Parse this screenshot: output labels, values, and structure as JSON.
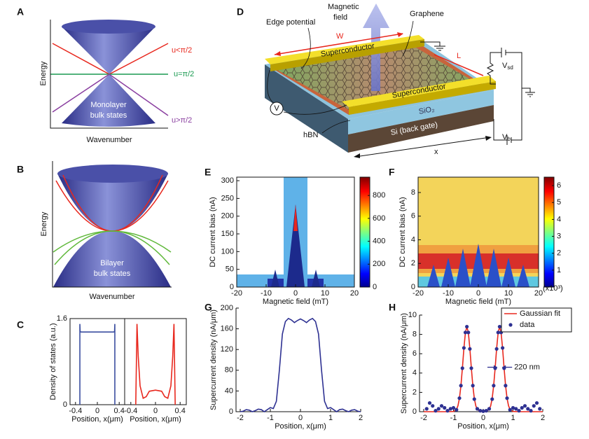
{
  "panels": {
    "A": {
      "letter": "A",
      "y_label": "Energy",
      "x_label": "Wavenumber",
      "bulk_label": [
        "Monolayer",
        "bulk states"
      ],
      "lines": [
        {
          "label": "u<π/2",
          "color": "#e8281e"
        },
        {
          "label": "u=π/2",
          "color": "#1a9a50"
        },
        {
          "label": "u>π/2",
          "color": "#8a3fa0"
        }
      ]
    },
    "B": {
      "letter": "B",
      "y_label": "Energy",
      "x_label": "Wavenumber",
      "bulk_label": [
        "Bilayer",
        "bulk states"
      ]
    },
    "C": {
      "letter": "C"
    },
    "D": {
      "letter": "D",
      "field_label": [
        "Magnetic",
        "field"
      ],
      "edge": "Edge potential",
      "graphene": "Graphene",
      "width": "W",
      "length": "L",
      "superconductor": "Superconductor",
      "oxide": "SiO₂",
      "gate": "Si (back gate)",
      "hbn": "hBN",
      "meter": "V",
      "axis": "x",
      "vsd": {
        "main": "V",
        "sub": "sd"
      },
      "vb": {
        "main": "V",
        "sub": "b"
      }
    },
    "E": {
      "letter": "E"
    },
    "F": {
      "letter": "F"
    },
    "G": {
      "letter": "G"
    },
    "H": {
      "letter": "H"
    }
  },
  "chart_data": [
    {
      "type": "line",
      "y_label": "Density of states (a.u.)",
      "x_label": "Position, x(μm)",
      "xlim": [
        -0.5,
        0.5
      ],
      "ylim": [
        0,
        1.6
      ],
      "xticks": [
        -0.4,
        0,
        0.4
      ],
      "yticks": [
        0,
        1.6
      ],
      "series": [
        {
          "color": "#3b4ea0",
          "x": [
            -0.32,
            -0.32,
            -0.315,
            -0.3,
            0,
            0.3,
            0.315,
            0.32,
            0.32
          ],
          "values": [
            0,
            1.5,
            1.36,
            1.35,
            1.35,
            1.35,
            1.36,
            1.5,
            0
          ]
        }
      ]
    },
    {
      "type": "line",
      "x_label": "Position, x(μm)",
      "xlim": [
        -0.5,
        0.5
      ],
      "ylim": [
        0,
        1.6
      ],
      "xticks": [
        -0.4,
        0,
        0.4
      ],
      "series": [
        {
          "color": "#e8281e",
          "x": [
            -0.32,
            -0.3,
            -0.28,
            -0.25,
            -0.2,
            -0.15,
            -0.1,
            0,
            0.1,
            0.15,
            0.2,
            0.25,
            0.28,
            0.3,
            0.32
          ],
          "values": [
            0,
            1.5,
            0.9,
            0.35,
            0.12,
            0.15,
            0.25,
            0.27,
            0.25,
            0.15,
            0.12,
            0.35,
            0.9,
            1.5,
            0
          ]
        }
      ]
    },
    {
      "type": "heatmap",
      "x_label": "Magnetic field (mT)",
      "y_label": "DC current bias (nA)",
      "xlim": [
        -20,
        20
      ],
      "ylim": [
        0,
        310
      ],
      "xticks": [
        -20,
        -10,
        0,
        10,
        20
      ],
      "yticks": [
        0,
        50,
        100,
        150,
        200,
        250,
        300
      ],
      "zlim": [
        0,
        960
      ],
      "zticks": [
        0,
        200,
        400,
        600,
        800
      ]
    },
    {
      "type": "heatmap",
      "x_label": "Magnetic field (mT)",
      "y_label": "DC current bias (nA)",
      "xlim": [
        -20,
        20
      ],
      "ylim": [
        0,
        9.3
      ],
      "xticks": [
        -20,
        -10,
        0,
        10,
        20
      ],
      "yticks": [
        0,
        2,
        4,
        6,
        8
      ],
      "zlim": [
        0,
        6.5
      ],
      "zticks": [
        1,
        2,
        3,
        4,
        5,
        6
      ],
      "annotation": "(x10³)"
    },
    {
      "type": "line",
      "y_label": "Supercurrent density (nA/μm)",
      "x_label": "Position, x(μm)",
      "xlim": [
        -2,
        2
      ],
      "ylim": [
        0,
        200
      ],
      "xticks": [
        -2,
        -1,
        0,
        1,
        2
      ],
      "yticks": [
        0,
        40,
        80,
        120,
        160,
        200
      ],
      "series": [
        {
          "color": "#2e3192",
          "x": [
            -2,
            -1.9,
            -1.8,
            -1.7,
            -1.6,
            -1.5,
            -1.4,
            -1.3,
            -1.2,
            -1.1,
            -1,
            -0.9,
            -0.8,
            -0.7,
            -0.6,
            -0.5,
            -0.4,
            -0.3,
            -0.2,
            -0.1,
            0,
            0.1,
            0.2,
            0.3,
            0.4,
            0.5,
            0.6,
            0.7,
            0.8,
            0.9,
            1,
            1.1,
            1.2,
            1.3,
            1.4,
            1.5,
            1.6,
            1.7,
            1.8,
            1.9,
            2
          ],
          "values": [
            0,
            1,
            4,
            3,
            0,
            2,
            5,
            4,
            0,
            4,
            8,
            6,
            20,
            80,
            150,
            174,
            180,
            177,
            172,
            176,
            179,
            176,
            172,
            177,
            180,
            174,
            150,
            80,
            20,
            6,
            8,
            4,
            0,
            4,
            5,
            2,
            0,
            3,
            4,
            1,
            0
          ]
        }
      ]
    },
    {
      "type": "line",
      "y_label": "Supercurrent density (nA/μm)",
      "x_label": "Position, x(μm)",
      "xlim": [
        -2,
        2
      ],
      "ylim": [
        0,
        10
      ],
      "xticks": [
        -2,
        -1,
        0,
        1,
        2
      ],
      "yticks": [
        0,
        2,
        4,
        6,
        8,
        10
      ],
      "legend": "upper right",
      "annotation": "220 nm",
      "series": [
        {
          "name": "Gaussian fit",
          "type": "line",
          "color": "#e8281e",
          "x": [
            -2,
            -1.2,
            -1,
            -0.9,
            -0.85,
            -0.8,
            -0.75,
            -0.7,
            -0.65,
            -0.6,
            -0.55,
            -0.5,
            -0.45,
            -0.4,
            -0.35,
            -0.3,
            -0.25,
            -0.2,
            -0.1,
            0,
            0.1,
            0.2,
            0.25,
            0.3,
            0.35,
            0.4,
            0.45,
            0.5,
            0.55,
            0.6,
            0.65,
            0.7,
            0.75,
            0.8,
            0.85,
            0.9,
            1,
            1.2,
            2
          ],
          "values": [
            0,
            0,
            0.02,
            0.24,
            0.61,
            1.38,
            2.7,
            4.52,
            6.55,
            8.17,
            8.8,
            8.17,
            6.55,
            4.52,
            2.7,
            1.38,
            0.61,
            0.24,
            0.02,
            0,
            0.02,
            0.24,
            0.61,
            1.38,
            2.7,
            4.52,
            6.55,
            8.17,
            8.8,
            8.17,
            6.55,
            4.52,
            2.7,
            1.38,
            0.61,
            0.24,
            0.02,
            0,
            0
          ]
        },
        {
          "name": "data",
          "type": "scatter",
          "color": "#2e3192",
          "x": [
            -1.9,
            -1.8,
            -1.7,
            -1.6,
            -1.5,
            -1.4,
            -1.3,
            -1.2,
            -1.1,
            -1,
            -0.9,
            -0.8,
            -0.75,
            -0.7,
            -0.65,
            -0.6,
            -0.55,
            -0.5,
            -0.45,
            -0.4,
            -0.35,
            -0.3,
            -0.2,
            -0.1,
            0,
            0.1,
            0.2,
            0.3,
            0.35,
            0.4,
            0.45,
            0.5,
            0.55,
            0.6,
            0.65,
            0.7,
            0.75,
            0.8,
            0.9,
            1,
            1.1,
            1.2,
            1.3,
            1.4,
            1.5,
            1.6,
            1.7,
            1.8,
            1.9
          ],
          "values": [
            0.3,
            0.9,
            0.6,
            0.1,
            0.3,
            0.6,
            0.4,
            0.1,
            0.3,
            0.4,
            0.2,
            1.4,
            2.7,
            4.5,
            6.6,
            8.2,
            8.8,
            8.2,
            6.5,
            4.5,
            2.7,
            1.3,
            0.3,
            0.1,
            0.05,
            0.1,
            0.3,
            1.3,
            2.7,
            4.5,
            6.5,
            8.2,
            8.8,
            8.2,
            6.6,
            4.5,
            2.7,
            1.4,
            0.2,
            0.4,
            0.3,
            0.1,
            0.4,
            0.6,
            0.3,
            0.1,
            0.6,
            0.9,
            0.3
          ]
        }
      ]
    }
  ]
}
